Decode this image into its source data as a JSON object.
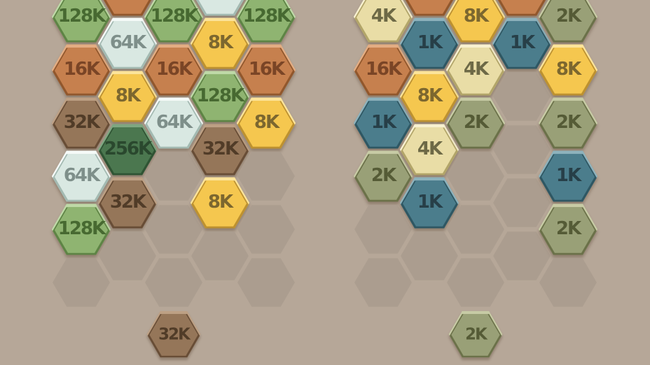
{
  "game": {
    "type": "hexagon-merge-puzzle",
    "mode": "split-screen-two-boards"
  },
  "colors": {
    "background": "#b6a798",
    "empty_cell": "#ab9d8f",
    "tile_shadow": "rgba(85,63,46,0.38)",
    "styles": {
      "1K": {
        "body": "#4b7d8c",
        "light": "#8db2bc",
        "dark": "#2e5763",
        "text": "#273f48"
      },
      "2K": {
        "body": "#99a077",
        "light": "#c7cba5",
        "dark": "#6b7149",
        "text": "#555b36"
      },
      "4K": {
        "body": "#e9dda6",
        "light": "#f8f1d0",
        "dark": "#b2a569",
        "text": "#6d6946"
      },
      "8K": {
        "body": "#f5c74f",
        "light": "#fce49a",
        "dark": "#bd9130",
        "text": "#7c672f"
      },
      "16K": {
        "body": "#c6804e",
        "light": "#e3ad83",
        "dark": "#91572c",
        "text": "#7a4526"
      },
      "32K": {
        "body": "#957659",
        "light": "#bda084",
        "dark": "#684d36",
        "text": "#513c28"
      },
      "64K": {
        "body": "#d9e8e2",
        "light": "#f5faf8",
        "dark": "#a3bab2",
        "text": "#7e8f8a"
      },
      "128K": {
        "body": "#8fb471",
        "light": "#bed9a7",
        "dark": "#5e8445",
        "text": "#476931"
      },
      "256K": {
        "body": "#4b774f",
        "light": "#7ea781",
        "dark": "#2f5434",
        "text": "#2a482e"
      }
    }
  },
  "boards": [
    {
      "id": "left",
      "piece": "32K",
      "columns": [
        [
          "128K",
          "16K",
          "32K",
          "64K",
          "128K",
          null
        ],
        [
          {
            "cut": true,
            "style": "16K"
          },
          "64K",
          "8K",
          "256K",
          "32K",
          null
        ],
        [
          "128K",
          "16K",
          "64K",
          null,
          null,
          null
        ],
        [
          {
            "cut": true,
            "style": "64K"
          },
          "8K",
          "128K",
          "32K",
          "8K",
          null
        ],
        [
          "128K",
          "16K",
          "8K",
          null,
          null,
          null
        ]
      ]
    },
    {
      "id": "right",
      "piece": "2K",
      "columns": [
        [
          "4K",
          "16K",
          "1K",
          "2K",
          null,
          null
        ],
        [
          {
            "cut": true,
            "style": "16K"
          },
          "1K",
          "8K",
          "4K",
          "1K",
          null
        ],
        [
          "8K",
          "4K",
          "2K",
          null,
          null,
          null
        ],
        [
          {
            "cut": true,
            "style": "16K"
          },
          "1K",
          null,
          null,
          null,
          null
        ],
        [
          "2K",
          "8K",
          "2K",
          "1K",
          "2K",
          null
        ]
      ]
    }
  ]
}
